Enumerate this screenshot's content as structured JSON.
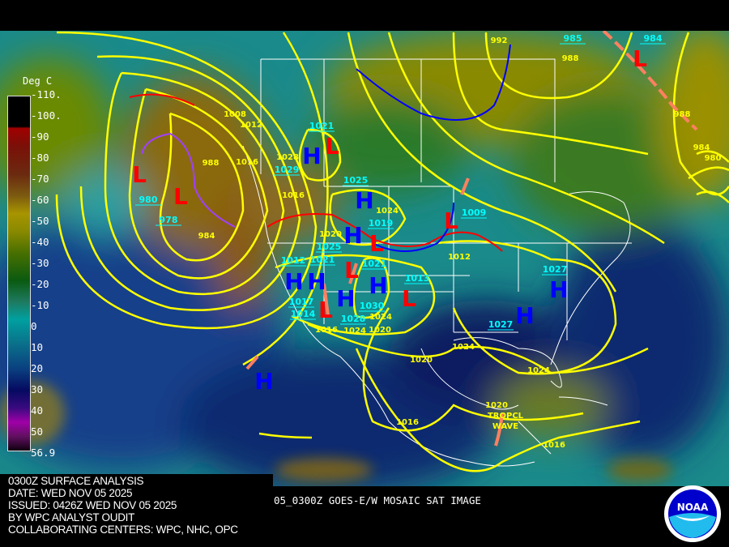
{
  "analysis": {
    "lines": [
      "0300Z SURFACE ANALYSIS",
      "DATE: WED NOV 05 2025",
      "ISSUED: 0426Z WED NOV 05 2025",
      "BY WPC ANALYST OUDIT",
      "COLLABORATING CENTERS: WPC, NHC, OPC"
    ],
    "satellite_label": "05_0300Z GOES-E/W MOSAIC SAT IMAGE"
  },
  "legend": {
    "title": "Deg C",
    "ticks": [
      "-110.",
      "-100.",
      "-90",
      "-80",
      "-70",
      "-60",
      "-50",
      "-40",
      "-30",
      "-20",
      "-10",
      "0",
      "10",
      "20",
      "30",
      "40",
      "50",
      "56.9"
    ]
  },
  "logo": {
    "text": "NOAA",
    "ring_text": "NATIONAL OCEANIC AND ATMOSPHERIC ADMINISTRATION U.S. DEPARTMENT OF COMMERCE"
  },
  "colors": {
    "isobar": "#ffff00",
    "high": "#0000ff",
    "low": "#ff0000",
    "center_label": "#00ffff",
    "cold_front": "#0000ff",
    "warm_front": "#ff0000",
    "trough": "#ff8060"
  },
  "pressure_systems": [
    {
      "type": "H"
    },
    {
      "type": "H"
    },
    {
      "type": "H"
    },
    {
      "type": "H"
    },
    {
      "type": "H"
    },
    {
      "type": "H"
    },
    {
      "type": "H"
    },
    {
      "type": "H"
    },
    {
      "type": "H"
    },
    {
      "type": "H"
    },
    {
      "type": "L"
    },
    {
      "type": "L"
    },
    {
      "type": "L"
    },
    {
      "type": "L"
    },
    {
      "type": "L"
    },
    {
      "type": "L"
    },
    {
      "type": "L"
    },
    {
      "type": "L"
    },
    {
      "type": "L"
    }
  ],
  "center_labels": [
    "1021",
    "1029",
    "1025",
    "1019",
    "1025",
    "1009",
    "1012",
    "1021",
    "1017",
    "1021",
    "1028",
    "1030",
    "1013",
    "1014",
    "1027",
    "1027",
    "980",
    "978",
    "985",
    "984"
  ],
  "isobar_labels": [
    "992",
    "988",
    "1008",
    "1012",
    "1016",
    "1024",
    "1020",
    "1012",
    "1024",
    "1024",
    "1020",
    "1016",
    "1020",
    "1024",
    "1024",
    "1020",
    "1016",
    "1016",
    "988",
    "984",
    "980",
    "988",
    "984",
    "1028",
    "1016"
  ],
  "feature_labels": [
    "TROPCL",
    "WAVE"
  ]
}
